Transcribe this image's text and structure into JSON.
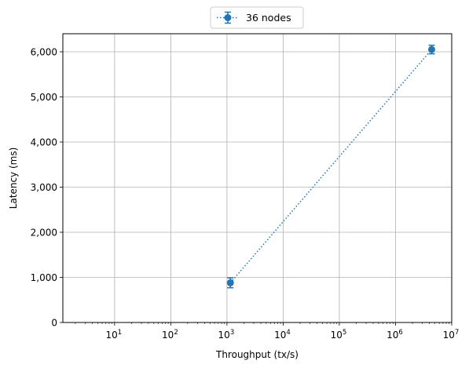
{
  "chart_data": {
    "type": "scatter",
    "xlabel": "Throughput (tx/s)",
    "ylabel": "Latency (ms)",
    "xscale": "log",
    "xlim": [
      1.2,
      10000000
    ],
    "ylim": [
      0,
      6400
    ],
    "x_ticks": [
      10,
      100,
      1000,
      10000,
      100000,
      1000000,
      10000000
    ],
    "x_tick_labels": [
      {
        "base": "10",
        "exp": "1"
      },
      {
        "base": "10",
        "exp": "2"
      },
      {
        "base": "10",
        "exp": "3"
      },
      {
        "base": "10",
        "exp": "4"
      },
      {
        "base": "10",
        "exp": "5"
      },
      {
        "base": "10",
        "exp": "6"
      },
      {
        "base": "10",
        "exp": "7"
      }
    ],
    "y_ticks": [
      0,
      1000,
      2000,
      3000,
      4000,
      5000,
      6000
    ],
    "y_tick_labels": [
      "0",
      "1,000",
      "2,000",
      "3,000",
      "4,000",
      "5,000",
      "6,000"
    ],
    "grid": true,
    "legend_position": "top-center",
    "series": [
      {
        "name": "36 nodes",
        "color": "#1f77b4",
        "line_style": "dotted",
        "marker": "circle",
        "points": [
          {
            "x": 1150,
            "y": 880,
            "err": 110
          },
          {
            "x": 4400000,
            "y": 6050,
            "err": 95
          }
        ]
      }
    ]
  }
}
